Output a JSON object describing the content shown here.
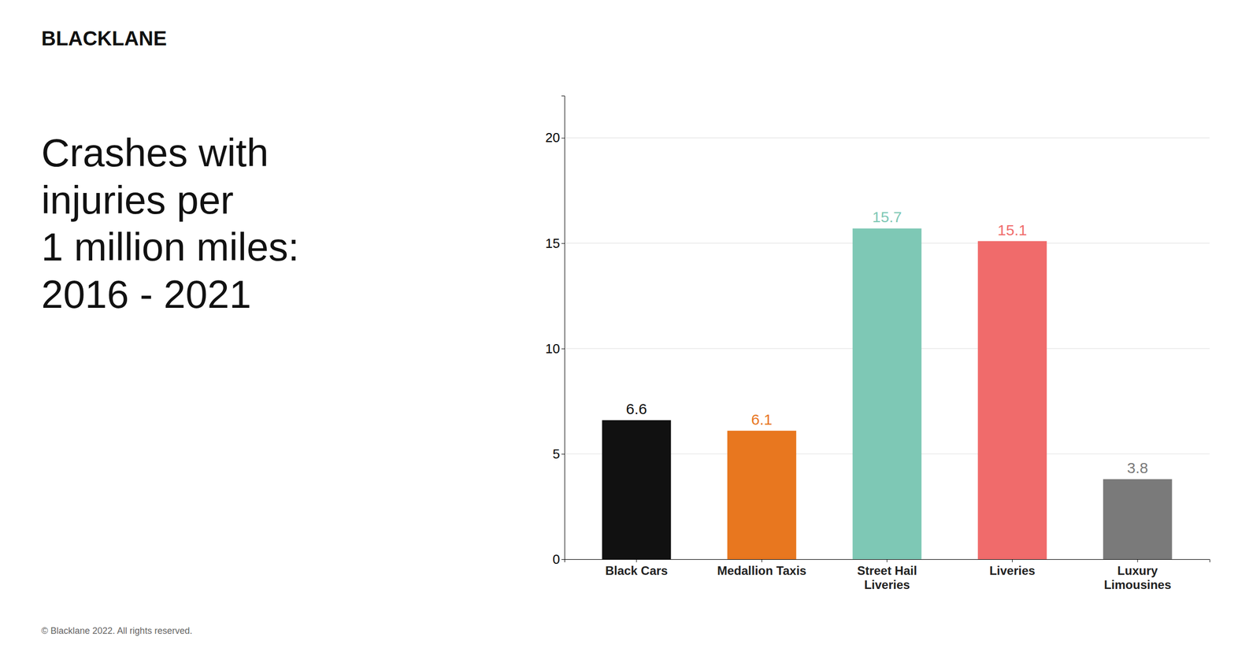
{
  "chart_data": {
    "type": "bar",
    "title": "Crashes with\ninjuries per\n1 million miles:\n2016 - 2021",
    "annotations": [
      "BLACKLANE",
      "© Blacklane 2022. All rights reserved."
    ],
    "categories": [
      "Black Cars",
      "Medallion Taxis",
      "Street Hail\nLiveries",
      "Liveries",
      "Luxury\nLimousines"
    ],
    "values": [
      6.6,
      6.1,
      15.7,
      15.1,
      3.8
    ],
    "colors": [
      "#111111",
      "#E8771F",
      "#7EC8B5",
      "#F06B6B",
      "#7A7A7A"
    ],
    "ylim": [
      0,
      22
    ],
    "yticks": [
      0,
      5,
      10,
      15,
      20
    ],
    "grid": true,
    "data_labels": true
  }
}
